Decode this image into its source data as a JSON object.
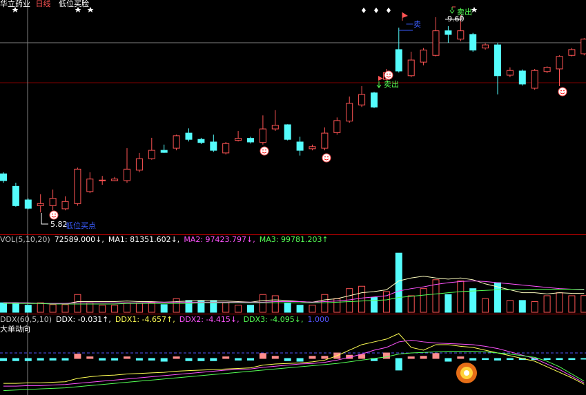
{
  "header": {
    "stock": "华立药业",
    "period": "日线",
    "formula": "低位买脸"
  },
  "chart_data": [
    {
      "type": "candlestick",
      "open": [
        6.56,
        6.32,
        6.06,
        5.95,
        5.95,
        5.89,
        5.99,
        6.22,
        6.43,
        6.43,
        6.43,
        6.63,
        6.85,
        7.01,
        7.05,
        7.34,
        7.22,
        7.17,
        6.96,
        7.2,
        7.24,
        7.16,
        7.42,
        7.5,
        7.17,
        7.04,
        7.05,
        7.35,
        7.57,
        7.88,
        8.11,
        8.37,
        8.94,
        8.44,
        8.7,
        8.83,
        9.3,
        9.14,
        9.23,
        8.97,
        9.03,
        8.45,
        8.53,
        8.2,
        8.52,
        8.57,
        8.83,
        8.86
      ],
      "high": [
        6.59,
        6.39,
        6.09,
        6.17,
        6.26,
        6.13,
        6.68,
        6.59,
        6.52,
        6.5,
        7.05,
        6.96,
        7.25,
        7.12,
        7.31,
        7.43,
        7.25,
        7.31,
        7.17,
        7.38,
        7.27,
        7.68,
        7.78,
        7.51,
        7.27,
        7.12,
        7.45,
        7.64,
        8.04,
        8.24,
        8.13,
        8.57,
        9.36,
        8.9,
        8.97,
        9.56,
        9.39,
        9.6,
        9.26,
        9.06,
        9.07,
        8.6,
        8.56,
        8.57,
        8.62,
        8.83,
        8.97,
        9.16
      ],
      "low": [
        6.39,
        5.93,
        5.88,
        5.82,
        5.86,
        5.86,
        5.95,
        6.19,
        6.35,
        6.42,
        6.39,
        6.59,
        6.83,
        6.96,
        7.01,
        7.18,
        7.13,
        6.98,
        6.93,
        7.18,
        7.14,
        7.12,
        7.38,
        7.2,
        6.91,
        7.01,
        7.01,
        7.31,
        7.54,
        7.84,
        7.82,
        8.34,
        8.5,
        8.41,
        8.64,
        8.81,
        9.07,
        9.1,
        8.9,
        8.94,
        8.08,
        8.41,
        8.25,
        8.17,
        8.49,
        8.24,
        8.81,
        8.83
      ],
      "close": [
        6.43,
        5.95,
        5.9,
        5.99,
        6.09,
        6.03,
        6.65,
        6.46,
        6.44,
        6.46,
        6.65,
        6.85,
        7.01,
        6.97,
        7.29,
        7.22,
        7.16,
        7.01,
        7.14,
        7.24,
        7.17,
        7.42,
        7.49,
        7.22,
        7.01,
        7.08,
        7.34,
        7.58,
        7.91,
        8.08,
        7.84,
        8.5,
        8.53,
        8.74,
        8.93,
        9.3,
        9.23,
        9.3,
        8.93,
        9.03,
        8.44,
        8.54,
        8.28,
        8.54,
        8.6,
        8.81,
        8.94,
        9.14
      ],
      "ylim": [
        5.4,
        9.89
      ],
      "up_color": "#ff5454",
      "down_color": "#54fcfc",
      "annotations": {
        "low": "5.82",
        "buy": "低位买点",
        "high": "9.60",
        "sell_first": "一卖",
        "sell_a": "卖出",
        "sell_b": "卖出"
      }
    },
    {
      "type": "bar",
      "title_parts": [
        {
          "text": "VOL(5,10,20)",
          "color": "#c0c0c0"
        },
        {
          "text": "72589.000↓,",
          "color": "#ffffff"
        },
        {
          "text": "MA1: 81351.602↓,",
          "color": "#ffffff"
        },
        {
          "text": "MA2: 97423.797↓,",
          "color": "#ff54ff"
        },
        {
          "text": "MA3: 99781.203↑",
          "color": "#54ff54"
        }
      ],
      "ylim": [
        0,
        290000
      ],
      "values": [
        41100,
        41100,
        30800,
        41100,
        33400,
        33400,
        77000,
        41100,
        30800,
        30800,
        41100,
        41100,
        41100,
        33400,
        59000,
        51300,
        51300,
        51300,
        41100,
        30800,
        30800,
        77000,
        71800,
        41100,
        30800,
        30800,
        77000,
        59000,
        102600,
        112900,
        64200,
        89800,
        256600,
        71800,
        102600,
        141100,
        77000,
        136000,
        102600,
        59000,
        128300,
        51300,
        51300,
        46200,
        71800,
        84700,
        71800,
        72589
      ],
      "series": [
        {
          "color": "#ffffc0",
          "values": [
            41100,
            41100,
            38500,
            38500,
            35900,
            35900,
            46200,
            46200,
            46200,
            46200,
            48800,
            46200,
            46200,
            43600,
            46200,
            48800,
            51300,
            48800,
            48800,
            46200,
            43600,
            51300,
            53900,
            51300,
            46200,
            43600,
            53900,
            59000,
            71800,
            84700,
            89800,
            97500,
            136000,
            148800,
            156500,
            148800,
            143700,
            148800,
            141100,
            123200,
            110300,
            97500,
            84700,
            84700,
            79500,
            84700,
            82100,
            81351.602
          ]
        },
        {
          "color": "#ff54ff",
          "values": [
            41100,
            41100,
            41100,
            38500,
            38500,
            38500,
            41100,
            41100,
            41100,
            41100,
            41100,
            41100,
            43600,
            43600,
            43600,
            43600,
            43600,
            43600,
            43600,
            43600,
            43600,
            43600,
            46200,
            46200,
            46200,
            43600,
            46200,
            48800,
            53900,
            61600,
            66700,
            71800,
            92400,
            102600,
            110300,
            120600,
            128300,
            133400,
            136000,
            133400,
            128300,
            123200,
            118000,
            112900,
            107800,
            102600,
            100100,
            97423.797
          ]
        },
        {
          "color": "#54ff54",
          "values": [
            38500,
            38500,
            38500,
            38500,
            35900,
            35900,
            35900,
            35900,
            35900,
            35900,
            38500,
            38500,
            38500,
            38500,
            38500,
            38500,
            41100,
            41100,
            41100,
            41100,
            41100,
            41100,
            41100,
            41100,
            41100,
            41100,
            41100,
            43600,
            46200,
            48800,
            51300,
            53900,
            64200,
            69300,
            74400,
            79500,
            84700,
            89800,
            92400,
            94900,
            97500,
            97500,
            97500,
            100100,
            100100,
            100100,
            100100,
            99781.203
          ]
        }
      ]
    },
    {
      "type": "bar",
      "title_parts": [
        {
          "text": "DDX(60,5,10)",
          "color": "#c0c0c0"
        },
        {
          "text": "DDX: -0.031↑,",
          "color": "#ffffff"
        },
        {
          "text": "DDX1: -4.657↑,",
          "color": "#ffff54"
        },
        {
          "text": "DDX2: -4.415↓,",
          "color": "#ff54ff"
        },
        {
          "text": "DDX3: -4.095↓,",
          "color": "#54ff54"
        },
        {
          "text": "1.000",
          "color": "#5454ff"
        }
      ],
      "subtitle": "大单动向",
      "ylim": [
        -6.6,
        8.1
      ],
      "ref_line": 1,
      "values": [
        -0.4,
        -0.4,
        -0.4,
        -0.3,
        -0.3,
        -0.3,
        0.8,
        0.3,
        -0.3,
        -0.3,
        0.3,
        -0.3,
        -0.3,
        -0.5,
        0.3,
        -0.4,
        -0.4,
        -0.4,
        0.3,
        -0.3,
        -0.3,
        0.9,
        0.4,
        -0.4,
        -0.5,
        0.4,
        0.4,
        1.0,
        0.6,
        0.7,
        -0.4,
        1.0,
        -2.1,
        0.3,
        0.4,
        0.9,
        -0.5,
        0.3,
        -0.3,
        -0.2,
        -0.3,
        -0.2,
        -0.2,
        -0.2,
        -0.2,
        -0.2,
        -0.2,
        -0.031
      ],
      "series": [
        {
          "color": "#ffff54",
          "values": [
            -4.5,
            -4.5,
            -4.4,
            -4.4,
            -4.3,
            -4.2,
            -3.6,
            -3.3,
            -3.1,
            -3.0,
            -2.8,
            -2.7,
            -2.6,
            -2.5,
            -2.3,
            -2.2,
            -2.1,
            -2.0,
            -1.9,
            -1.8,
            -1.7,
            -1.2,
            -1.0,
            -0.9,
            -0.8,
            -0.6,
            -0.3,
            0.5,
            1.5,
            2.5,
            3.0,
            3.5,
            4.5,
            2.0,
            1.5,
            2.5,
            2.5,
            2.2,
            2.0,
            1.5,
            1.0,
            0.5,
            0.0,
            -0.5,
            -1.5,
            -2.5,
            -3.5,
            -4.657
          ]
        },
        {
          "color": "#ff54ff",
          "values": [
            -5.0,
            -5.0,
            -4.9,
            -4.9,
            -4.8,
            -4.7,
            -4.5,
            -4.3,
            -4.1,
            -3.9,
            -3.7,
            -3.5,
            -3.3,
            -3.1,
            -2.9,
            -2.7,
            -2.5,
            -2.3,
            -2.1,
            -2.0,
            -1.9,
            -1.6,
            -1.4,
            -1.2,
            -1.0,
            -0.9,
            -0.7,
            -0.3,
            0.2,
            0.8,
            1.5,
            2.0,
            3.0,
            3.3,
            3.0,
            2.8,
            2.7,
            2.6,
            2.5,
            2.2,
            1.8,
            1.2,
            0.6,
            0.0,
            -1.0,
            -2.0,
            -3.2,
            -4.415
          ]
        },
        {
          "color": "#54ff54",
          "values": [
            -5.8,
            -5.7,
            -5.6,
            -5.5,
            -5.4,
            -5.3,
            -5.1,
            -4.9,
            -4.7,
            -4.5,
            -4.3,
            -4.1,
            -3.9,
            -3.7,
            -3.5,
            -3.3,
            -3.1,
            -2.9,
            -2.7,
            -2.5,
            -2.3,
            -2.1,
            -1.9,
            -1.7,
            -1.5,
            -1.3,
            -1.1,
            -0.9,
            -0.6,
            -0.3,
            0.0,
            0.3,
            0.8,
            1.0,
            1.1,
            1.2,
            1.3,
            1.3,
            1.3,
            1.2,
            1.0,
            0.8,
            0.5,
            0.2,
            -0.5,
            -1.5,
            -2.8,
            -4.095
          ]
        }
      ]
    }
  ]
}
